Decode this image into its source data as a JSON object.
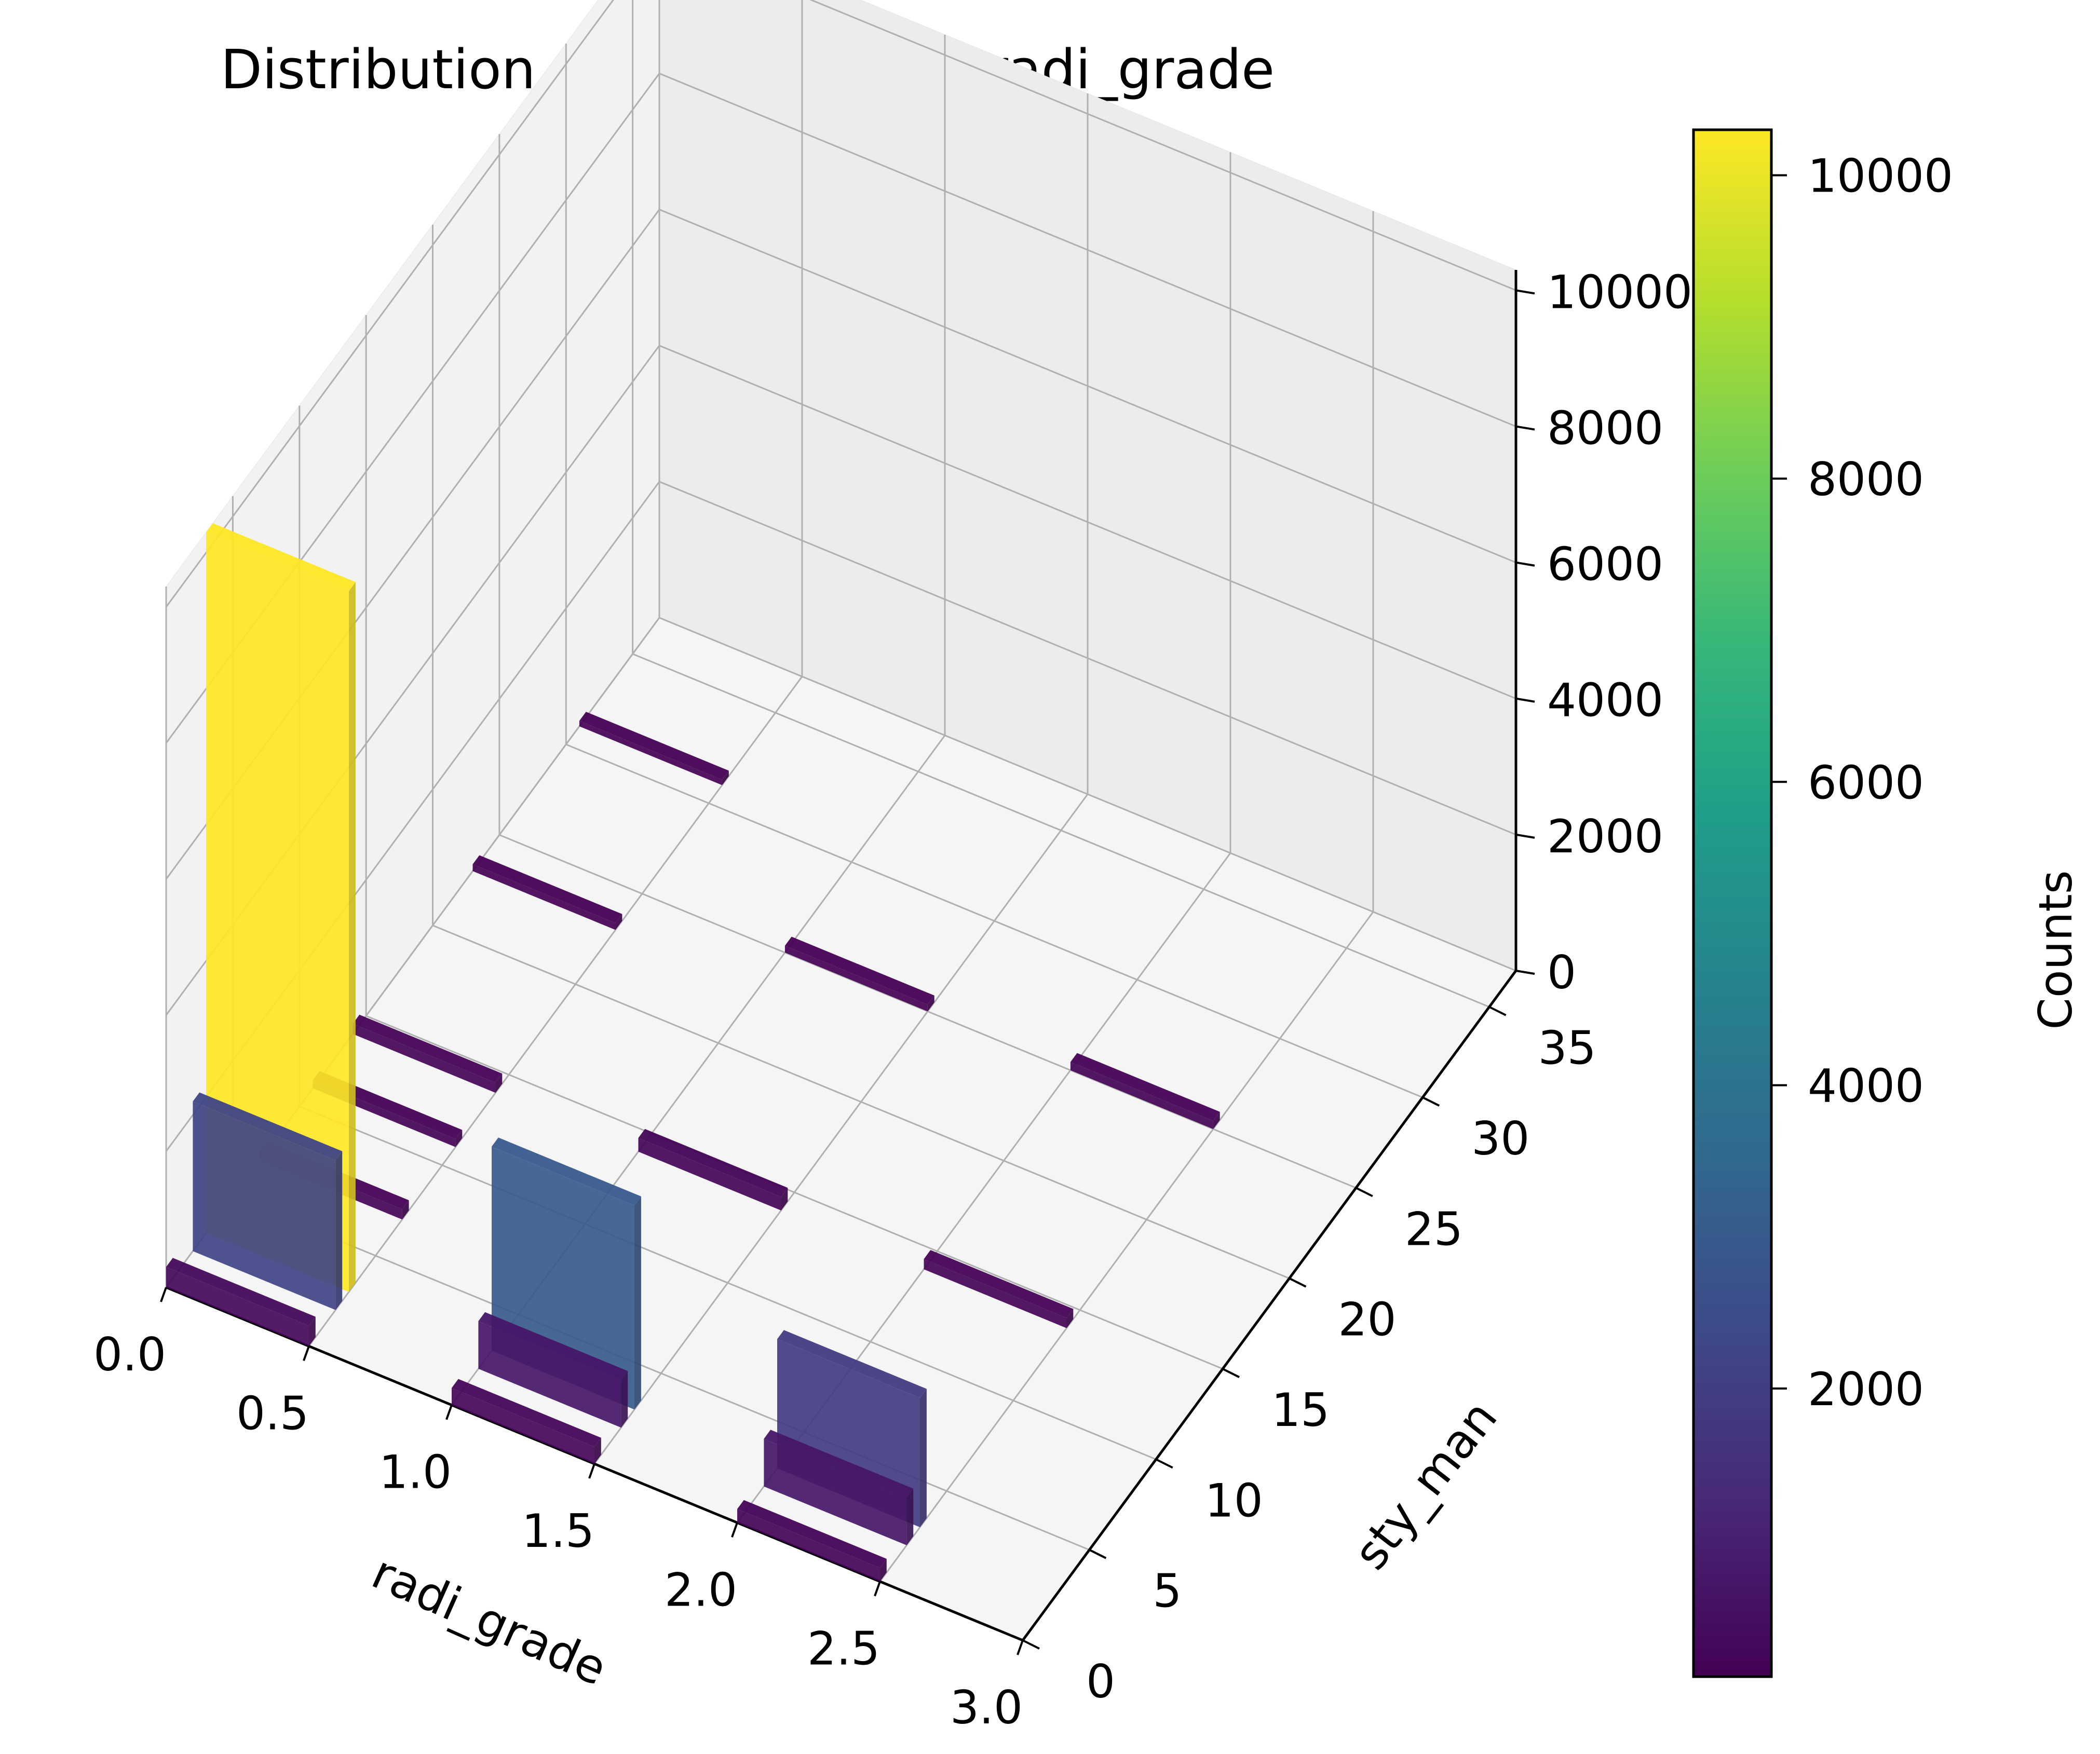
{
  "chart_data": {
    "type": "bar3d",
    "title": "Distribution of sty_man and radi_grade",
    "xlabel": "radi_grade",
    "ylabel": "sty_man",
    "colorbar_label": "Counts",
    "colormap": "viridis",
    "x_ticks": [
      "0.0",
      "0.5",
      "1.0",
      "1.5",
      "2.0",
      "2.5",
      "3.0"
    ],
    "y_ticks": [
      "0",
      "5",
      "10",
      "15",
      "20",
      "25",
      "30",
      "35"
    ],
    "z_ticks": [
      "0",
      "2000",
      "4000",
      "6000",
      "8000",
      "10000"
    ],
    "colorbar_ticks": [
      "2000",
      "4000",
      "6000",
      "8000",
      "10000"
    ],
    "xlim": [
      0,
      3
    ],
    "ylim": [
      0,
      37
    ],
    "zlim": [
      0,
      10300
    ],
    "colorbar_range": [
      100,
      10300
    ],
    "grid": true,
    "bars": [
      {
        "x": 0,
        "y": 0,
        "value": 300
      },
      {
        "x": 0,
        "y": 2,
        "value": 2200
      },
      {
        "x": 0,
        "y": 3,
        "value": 10300
      },
      {
        "x": 0,
        "y": 7,
        "value": 150
      },
      {
        "x": 0,
        "y": 11,
        "value": 120
      },
      {
        "x": 0,
        "y": 14,
        "value": 150
      },
      {
        "x": 0,
        "y": 23,
        "value": 100
      },
      {
        "x": 0,
        "y": 31,
        "value": 80
      },
      {
        "x": 1,
        "y": 0,
        "value": 250
      },
      {
        "x": 1,
        "y": 2,
        "value": 700
      },
      {
        "x": 1,
        "y": 3,
        "value": 3000
      },
      {
        "x": 1,
        "y": 14,
        "value": 200
      },
      {
        "x": 1,
        "y": 25,
        "value": 100
      },
      {
        "x": 2,
        "y": 0,
        "value": 200
      },
      {
        "x": 2,
        "y": 2,
        "value": 700
      },
      {
        "x": 2,
        "y": 3,
        "value": 1900
      },
      {
        "x": 2,
        "y": 14,
        "value": 150
      },
      {
        "x": 2,
        "y": 25,
        "value": 120
      }
    ]
  }
}
